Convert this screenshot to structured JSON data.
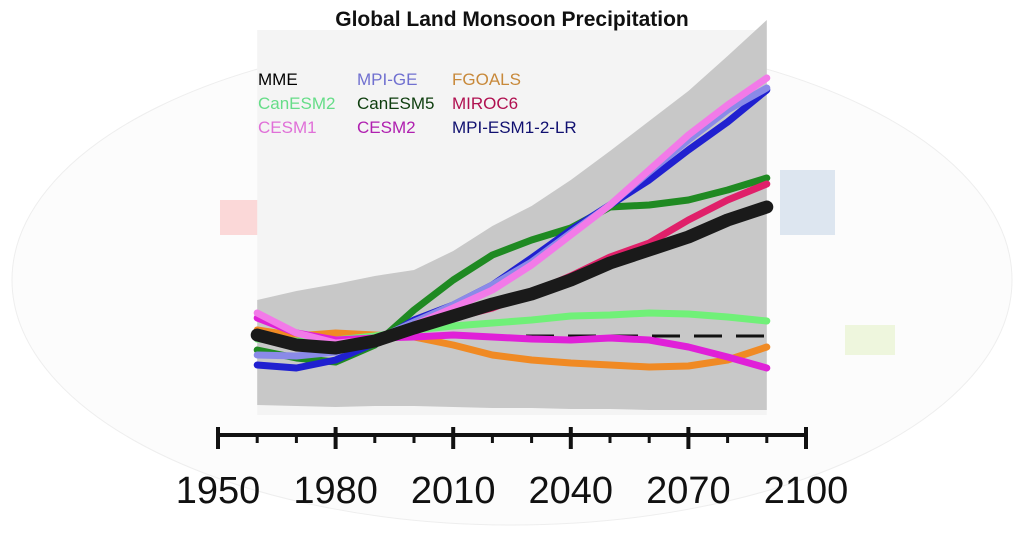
{
  "chart_data": {
    "type": "line",
    "title": "Global Land Monsoon Precipitation",
    "xlabel": "",
    "ylabel": "",
    "xlim": [
      1950,
      2100
    ],
    "x_ticks": [
      "1950",
      "1980",
      "2010",
      "2040",
      "2070",
      "2100"
    ],
    "x_minor_tick_step": 10,
    "y_axis_shown": false,
    "grid": false,
    "legend_placement": "top-left",
    "background": "faint world map with monsoon regions",
    "x": [
      1960,
      1970,
      1980,
      1990,
      2000,
      2010,
      2020,
      2030,
      2040,
      2050,
      2060,
      2070,
      2080,
      2090
    ],
    "baseline": {
      "style": "dashed",
      "value": 0,
      "x_start": 1975,
      "x_end": 2090,
      "color": "#111111"
    },
    "ensemble_spread": {
      "color": "#c8c8c8",
      "upper": [
        3.6,
        4.5,
        5.2,
        6.0,
        6.6,
        8.5,
        11.0,
        13.0,
        15.6,
        18.5,
        21.5,
        24.5,
        28.0,
        31.6
      ],
      "lower": [
        -6.9,
        -7.0,
        -7.1,
        -7.0,
        -7.0,
        -7.1,
        -7.2,
        -7.2,
        -7.3,
        -7.3,
        -7.4,
        -7.4,
        -7.4,
        -7.4
      ]
    },
    "series": [
      {
        "name": "FGOALS",
        "color": "#f08a24",
        "label_color": "#c8893a",
        "values": [
          0.6,
          0.0,
          0.3,
          0.1,
          -0.1,
          -0.9,
          -1.9,
          -2.4,
          -2.7,
          -2.9,
          -3.1,
          -3.0,
          -2.4,
          -1.1
        ]
      },
      {
        "name": "CanESM2",
        "color": "#70f078",
        "label_color": "#66dd88",
        "values": [
          -0.3,
          -0.5,
          -0.4,
          0.0,
          0.6,
          1.0,
          1.3,
          1.6,
          2.0,
          2.1,
          2.3,
          2.2,
          1.9,
          1.5
        ]
      },
      {
        "name": "CESM2",
        "color": "#e020d8",
        "label_color": "#b020b0",
        "values": [
          1.8,
          0.3,
          -0.4,
          -0.2,
          -0.1,
          0.1,
          -0.1,
          -0.3,
          -0.4,
          -0.2,
          -0.4,
          -1.1,
          -2.1,
          -3.2
        ]
      },
      {
        "name": "CanESM5",
        "color": "#1f8a22",
        "label_color": "#0d3d0d",
        "values": [
          -1.4,
          -2.2,
          -2.6,
          -0.9,
          2.6,
          5.6,
          8.1,
          9.6,
          10.8,
          12.9,
          13.1,
          13.6,
          14.6,
          15.8
        ]
      },
      {
        "name": "MIROC6",
        "color": "#e0206a",
        "label_color": "#b01050",
        "values": [
          0.0,
          -0.8,
          -1.0,
          -0.4,
          0.7,
          1.8,
          2.8,
          4.3,
          6.0,
          7.9,
          9.3,
          11.6,
          13.6,
          15.2
        ]
      },
      {
        "name": "MPI-ESM1-2-LR",
        "color": "#2020d0",
        "label_color": "#101070",
        "values": [
          -2.9,
          -3.2,
          -2.4,
          -0.7,
          1.6,
          3.1,
          5.1,
          7.8,
          10.6,
          13.1,
          15.6,
          18.6,
          21.4,
          24.6
        ]
      },
      {
        "name": "MPI-GE",
        "color": "#8a8ae8",
        "label_color": "#7070d0",
        "values": [
          -1.9,
          -2.0,
          -1.6,
          -0.4,
          1.4,
          3.1,
          5.1,
          7.4,
          10.3,
          13.1,
          16.4,
          19.6,
          22.6,
          24.8
        ]
      },
      {
        "name": "CESM1",
        "color": "#f27ae8",
        "label_color": "#e070d8",
        "values": [
          2.3,
          0.3,
          -0.7,
          -0.4,
          1.1,
          2.8,
          4.6,
          7.1,
          10.1,
          13.1,
          16.6,
          20.1,
          23.1,
          25.8
        ]
      },
      {
        "name": "MME",
        "color": "#1a1a1a",
        "label_color": "#000000",
        "values": [
          0.1,
          -0.9,
          -1.2,
          -0.5,
          0.8,
          2.0,
          3.2,
          4.2,
          5.6,
          7.3,
          8.6,
          9.9,
          11.6,
          12.9
        ]
      }
    ],
    "legend_order": [
      "MME",
      "MPI-GE",
      "FGOALS",
      "CanESM2",
      "CanESM5",
      "MIROC6",
      "CESM1",
      "CESM2",
      "MPI-ESM1-2-LR"
    ]
  }
}
